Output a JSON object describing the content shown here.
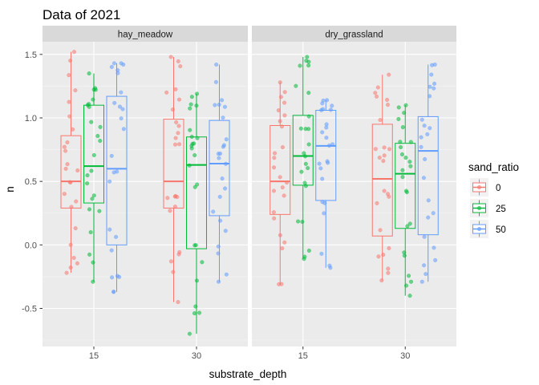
{
  "chart_data": {
    "type": "boxplot",
    "title": "Data of 2021",
    "xlabel": "substrate_depth",
    "ylabel": "n",
    "ylim": [
      -0.8,
      1.6
    ],
    "yticks": [
      -0.5,
      0.0,
      0.5,
      1.0,
      1.5
    ],
    "ytick_labels": [
      "-0.5",
      "0.0",
      "0.5",
      "1.0",
      "1.5"
    ],
    "categories": [
      "15",
      "30"
    ],
    "facets": [
      "hay_meadow",
      "dry_grassland"
    ],
    "legend": {
      "title": "sand_ratio",
      "position": "right",
      "entries": [
        "0",
        "25",
        "50"
      ],
      "colors": [
        "#F8766D",
        "#00BA38",
        "#619CFF"
      ]
    },
    "grid": true,
    "panels": [
      {
        "facet": "hay_meadow",
        "boxes": [
          {
            "x": "15",
            "group": "0",
            "whisker_low": -0.22,
            "q1": 0.29,
            "median": 0.5,
            "q3": 0.86,
            "whisker_high": 1.52
          },
          {
            "x": "15",
            "group": "25",
            "whisker_low": -0.29,
            "q1": 0.33,
            "median": 0.62,
            "q3": 1.1,
            "whisker_high": 1.35
          },
          {
            "x": "15",
            "group": "50",
            "whisker_low": -0.37,
            "q1": 0.0,
            "median": 0.6,
            "q3": 1.17,
            "whisker_high": 1.43
          },
          {
            "x": "30",
            "group": "0",
            "whisker_low": -0.45,
            "q1": 0.29,
            "median": 0.5,
            "q3": 0.99,
            "whisker_high": 1.48
          },
          {
            "x": "30",
            "group": "25",
            "whisker_low": -0.7,
            "q1": -0.03,
            "median": 0.63,
            "q3": 0.85,
            "whisker_high": 1.19
          },
          {
            "x": "30",
            "group": "50",
            "whisker_low": -0.29,
            "q1": 0.23,
            "median": 0.64,
            "q3": 0.98,
            "whisker_high": 1.42
          }
        ]
      },
      {
        "facet": "dry_grassland",
        "boxes": [
          {
            "x": "15",
            "group": "0",
            "whisker_low": -0.31,
            "q1": 0.24,
            "median": 0.5,
            "q3": 0.94,
            "whisker_high": 1.28
          },
          {
            "x": "15",
            "group": "25",
            "whisker_low": -0.11,
            "q1": 0.47,
            "median": 0.7,
            "q3": 1.02,
            "whisker_high": 1.48
          },
          {
            "x": "15",
            "group": "50",
            "whisker_low": -0.18,
            "q1": 0.35,
            "median": 0.78,
            "q3": 1.06,
            "whisker_high": 1.14
          },
          {
            "x": "30",
            "group": "0",
            "whisker_low": -0.28,
            "q1": 0.07,
            "median": 0.52,
            "q3": 0.95,
            "whisker_high": 1.34
          },
          {
            "x": "30",
            "group": "25",
            "whisker_low": -0.4,
            "q1": 0.13,
            "median": 0.56,
            "q3": 0.8,
            "whisker_high": 1.1
          },
          {
            "x": "30",
            "group": "50",
            "whisker_low": -0.29,
            "q1": 0.08,
            "median": 0.74,
            "q3": 1.01,
            "whisker_high": 1.42
          }
        ]
      }
    ]
  }
}
